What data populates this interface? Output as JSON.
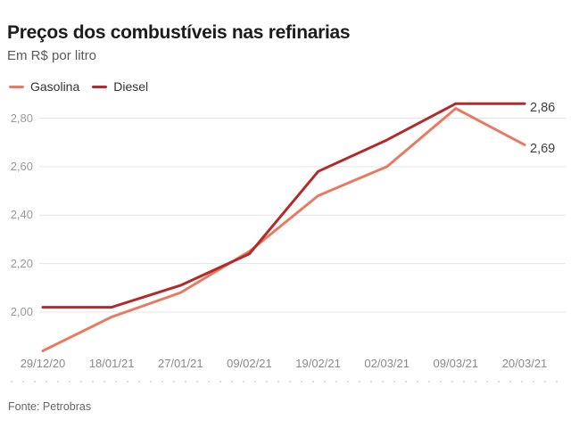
{
  "header": {
    "title": "Preços dos combustíveis nas refinarias",
    "subtitle": "Em R$ por litro"
  },
  "chart_data": {
    "type": "line",
    "title": "Preços dos combustíveis nas refinarias",
    "subtitle": "Em R$ por litro",
    "unit": "R$ por litro",
    "categories": [
      "29/12/20",
      "18/01/21",
      "27/01/21",
      "09/02/21",
      "19/02/21",
      "02/03/21",
      "09/03/21",
      "20/03/21"
    ],
    "series": [
      {
        "name": "Gasolina",
        "color": "#e97a62",
        "values": [
          1.84,
          1.98,
          2.08,
          2.25,
          2.48,
          2.6,
          2.84,
          2.69
        ]
      },
      {
        "name": "Diesel",
        "color": "#b22a2b",
        "values": [
          2.02,
          2.02,
          2.11,
          2.24,
          2.58,
          2.71,
          2.86,
          2.86
        ]
      }
    ],
    "yticks": [
      {
        "value": 2.0,
        "label": "2,00"
      },
      {
        "value": 2.2,
        "label": "2,20"
      },
      {
        "value": 2.4,
        "label": "2,40"
      },
      {
        "value": 2.6,
        "label": "2,60"
      },
      {
        "value": 2.8,
        "label": "2,80"
      }
    ],
    "ylim": [
      1.82,
      2.89
    ],
    "xlabel": "",
    "ylabel": "Em R$ por litro",
    "grid": "horizontal",
    "legend_position": "top-left",
    "end_labels": [
      {
        "series": "Diesel",
        "text": "2,86",
        "value": 2.86
      },
      {
        "series": "Gasolina",
        "text": "2,69",
        "value": 2.69
      }
    ]
  },
  "footer": {
    "source": "Fonte: Petrobras"
  },
  "colors": {
    "gasolina": "#e97a62",
    "diesel": "#b22a2b",
    "gridline": "#e4e4e4",
    "dotted_rule": "#dedede"
  }
}
